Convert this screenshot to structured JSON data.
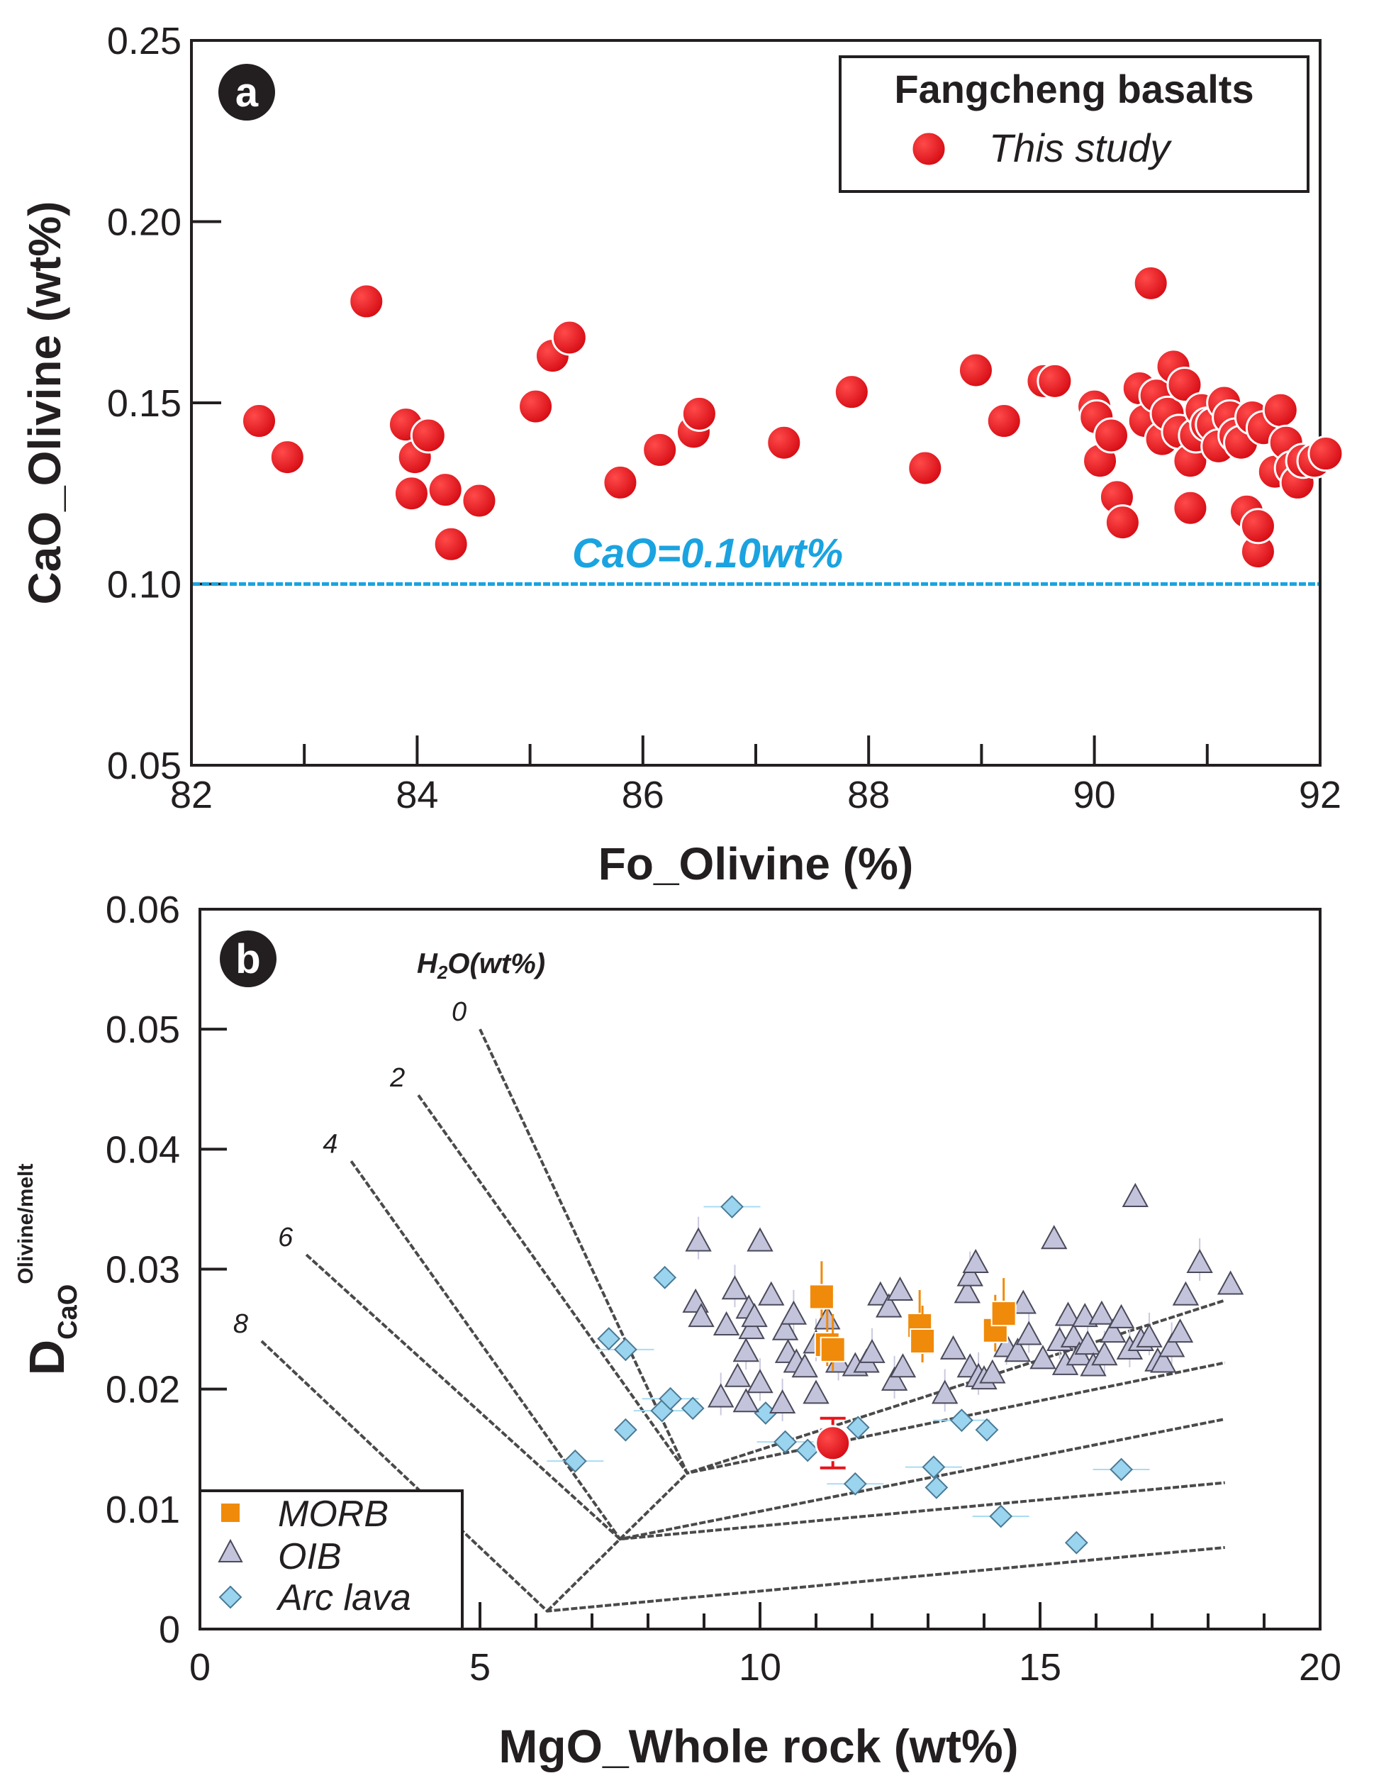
{
  "chart_data": [
    {
      "type": "scatter",
      "panel_label": "a",
      "xlabel": "Fo_Olivine (%)",
      "ylabel": "CaO_Olivine (wt%)",
      "xlim": [
        82,
        92
      ],
      "ylim": [
        0.05,
        0.25
      ],
      "x_ticks": [
        82,
        84,
        86,
        88,
        90,
        92
      ],
      "x_tick_labels": [
        "82",
        "84",
        "86",
        "88",
        "90",
        "92"
      ],
      "y_ticks": [
        0.05,
        0.1,
        0.15,
        0.2,
        0.25
      ],
      "y_tick_labels": [
        "0.05",
        "0.10",
        "0.15",
        "0.20",
        "0.25"
      ],
      "reference_line": {
        "y": 0.1,
        "label": "CaO=0.10wt%",
        "color": "#1aa3e0"
      },
      "legend": {
        "title": "Fangcheng basalts",
        "entries": [
          {
            "label": "This study",
            "color": "#e8141a"
          }
        ],
        "position": "top-right"
      },
      "series": [
        {
          "name": "This study",
          "color": "#e8141a",
          "points": [
            [
              82.6,
              0.145
            ],
            [
              82.85,
              0.135
            ],
            [
              83.55,
              0.178
            ],
            [
              83.9,
              0.144
            ],
            [
              83.95,
              0.125
            ],
            [
              83.98,
              0.135
            ],
            [
              84.1,
              0.141
            ],
            [
              84.25,
              0.126
            ],
            [
              84.3,
              0.111
            ],
            [
              84.55,
              0.123
            ],
            [
              85.05,
              0.149
            ],
            [
              85.2,
              0.163
            ],
            [
              85.35,
              0.168
            ],
            [
              85.8,
              0.128
            ],
            [
              86.15,
              0.137
            ],
            [
              86.45,
              0.142
            ],
            [
              86.5,
              0.147
            ],
            [
              87.25,
              0.139
            ],
            [
              87.85,
              0.153
            ],
            [
              88.5,
              0.132
            ],
            [
              88.95,
              0.159
            ],
            [
              89.2,
              0.145
            ],
            [
              89.55,
              0.156
            ],
            [
              89.65,
              0.156
            ],
            [
              90.0,
              0.149
            ],
            [
              90.02,
              0.146
            ],
            [
              90.05,
              0.134
            ],
            [
              90.15,
              0.141
            ],
            [
              90.2,
              0.124
            ],
            [
              90.25,
              0.117
            ],
            [
              90.4,
              0.154
            ],
            [
              90.45,
              0.145
            ],
            [
              90.5,
              0.183
            ],
            [
              90.55,
              0.152
            ],
            [
              90.6,
              0.14
            ],
            [
              90.65,
              0.147
            ],
            [
              90.7,
              0.16
            ],
            [
              90.75,
              0.142
            ],
            [
              90.8,
              0.155
            ],
            [
              90.85,
              0.121
            ],
            [
              90.85,
              0.134
            ],
            [
              90.9,
              0.141
            ],
            [
              90.95,
              0.148
            ],
            [
              91.0,
              0.144
            ],
            [
              91.05,
              0.144
            ],
            [
              91.1,
              0.138
            ],
            [
              91.15,
              0.15
            ],
            [
              91.2,
              0.146
            ],
            [
              91.25,
              0.141
            ],
            [
              91.3,
              0.139
            ],
            [
              91.35,
              0.12
            ],
            [
              91.4,
              0.146
            ],
            [
              91.45,
              0.109
            ],
            [
              91.45,
              0.116
            ],
            [
              91.5,
              0.143
            ],
            [
              91.6,
              0.131
            ],
            [
              91.65,
              0.148
            ],
            [
              91.7,
              0.139
            ],
            [
              91.75,
              0.132
            ],
            [
              91.8,
              0.128
            ],
            [
              91.85,
              0.134
            ],
            [
              91.95,
              0.134
            ],
            [
              92.05,
              0.136
            ]
          ]
        }
      ]
    },
    {
      "type": "scatter",
      "panel_label": "b",
      "xlabel": "MgO_Whole rock (wt%)",
      "ylabel_main": "D",
      "ylabel_sub": "CaO",
      "ylabel_sup": "Olivine/melt",
      "xlim": [
        0,
        20
      ],
      "ylim": [
        0,
        0.06
      ],
      "x_ticks": [
        0,
        5,
        10,
        15,
        20
      ],
      "x_tick_labels": [
        "0",
        "5",
        "10",
        "15",
        "20"
      ],
      "y_ticks": [
        0,
        0.01,
        0.02,
        0.03,
        0.04,
        0.05,
        0.06
      ],
      "y_tick_labels": [
        "0",
        "0.01",
        "0.02",
        "0.03",
        "0.04",
        "0.05",
        "0.06"
      ],
      "h2o_title_main": "H",
      "h2o_title_sub": "2",
      "h2o_title_rest": "O(wt%)",
      "h2o_model_lines": [
        {
          "label": "0",
          "vertex": [
            8.7,
            0.013
          ],
          "start": [
            5.0,
            0.05
          ],
          "end": [
            18.3,
            0.0274
          ]
        },
        {
          "label": "2",
          "vertex": [
            8.7,
            0.013
          ],
          "start": [
            3.9,
            0.0445
          ],
          "end": [
            18.3,
            0.0222
          ]
        },
        {
          "label": "4",
          "vertex": [
            7.5,
            0.0075
          ],
          "start": [
            2.7,
            0.039
          ],
          "end": [
            18.3,
            0.0175
          ]
        },
        {
          "label": "6",
          "vertex": [
            7.5,
            0.0075
          ],
          "start": [
            1.9,
            0.0312
          ],
          "end": [
            18.3,
            0.0122
          ]
        },
        {
          "label": "8",
          "vertex": [
            6.2,
            0.0015
          ],
          "start": [
            1.1,
            0.024
          ],
          "end": [
            18.3,
            0.0068
          ]
        }
      ],
      "mixing_line": [
        [
          6.2,
          0.0015
        ],
        [
          7.5,
          0.0075
        ],
        [
          8.7,
          0.013
        ]
      ],
      "legend": {
        "entries": [
          {
            "label": "MORB",
            "marker": "square",
            "color": "#f08a0a"
          },
          {
            "label": "OIB",
            "marker": "triangle",
            "color": "#c3c3dc"
          },
          {
            "label": "Arc lava",
            "marker": "diamond",
            "color": "#9ad4ee"
          }
        ],
        "position": "bottom-left"
      },
      "series": [
        {
          "name": "MORB",
          "color": "#f08a0a",
          "points": [
            [
              11.1,
              0.0277
            ],
            [
              11.2,
              0.0237
            ],
            [
              11.3,
              0.0233
            ],
            [
              12.85,
              0.0253
            ],
            [
              12.9,
              0.024
            ],
            [
              14.2,
              0.0249
            ],
            [
              14.35,
              0.0263
            ]
          ]
        },
        {
          "name": "OIB",
          "color": "#c3c3dc",
          "points": [
            [
              8.9,
              0.0323
            ],
            [
              8.85,
              0.0272
            ],
            [
              8.95,
              0.026
            ],
            [
              9.3,
              0.0193
            ],
            [
              9.4,
              0.0253
            ],
            [
              9.6,
              0.021
            ],
            [
              9.55,
              0.0283
            ],
            [
              9.75,
              0.0189
            ],
            [
              9.8,
              0.0267
            ],
            [
              9.75,
              0.0231
            ],
            [
              9.85,
              0.025
            ],
            [
              9.9,
              0.026
            ],
            [
              10.0,
              0.0205
            ],
            [
              10.0,
              0.0323
            ],
            [
              10.2,
              0.0278
            ],
            [
              10.4,
              0.0188
            ],
            [
              10.45,
              0.0249
            ],
            [
              10.5,
              0.023
            ],
            [
              10.6,
              0.0262
            ],
            [
              10.65,
              0.0222
            ],
            [
              10.8,
              0.0218
            ],
            [
              11.0,
              0.0238
            ],
            [
              11.0,
              0.0196
            ],
            [
              11.2,
              0.0258
            ],
            [
              11.4,
              0.0222
            ],
            [
              11.7,
              0.0219
            ],
            [
              11.9,
              0.0222
            ],
            [
              12.0,
              0.023
            ],
            [
              12.15,
              0.0278
            ],
            [
              12.3,
              0.0268
            ],
            [
              12.4,
              0.0207
            ],
            [
              12.55,
              0.0218
            ],
            [
              12.5,
              0.0282
            ],
            [
              13.3,
              0.0196
            ],
            [
              13.45,
              0.0233
            ],
            [
              13.7,
              0.028
            ],
            [
              13.75,
              0.0294
            ],
            [
              13.75,
              0.0218
            ],
            [
              13.85,
              0.0305
            ],
            [
              13.9,
              0.021
            ],
            [
              14.0,
              0.0208
            ],
            [
              14.15,
              0.0213
            ],
            [
              14.4,
              0.0235
            ],
            [
              14.6,
              0.0231
            ],
            [
              14.7,
              0.0271
            ],
            [
              14.8,
              0.0245
            ],
            [
              15.05,
              0.0225
            ],
            [
              15.25,
              0.0325
            ],
            [
              15.35,
              0.024
            ],
            [
              15.45,
              0.022
            ],
            [
              15.5,
              0.0261
            ],
            [
              15.6,
              0.0243
            ],
            [
              15.7,
              0.0228
            ],
            [
              15.8,
              0.026
            ],
            [
              15.85,
              0.0237
            ],
            [
              15.95,
              0.0219
            ],
            [
              16.1,
              0.0262
            ],
            [
              16.15,
              0.0228
            ],
            [
              16.3,
              0.0247
            ],
            [
              16.45,
              0.0259
            ],
            [
              16.6,
              0.0233
            ],
            [
              16.7,
              0.036
            ],
            [
              16.8,
              0.024
            ],
            [
              16.95,
              0.0243
            ],
            [
              17.1,
              0.0223
            ],
            [
              17.2,
              0.0222
            ],
            [
              17.35,
              0.0235
            ],
            [
              17.5,
              0.0247
            ],
            [
              17.6,
              0.0278
            ],
            [
              17.85,
              0.0305
            ],
            [
              18.4,
              0.0287
            ]
          ]
        },
        {
          "name": "Arc lava",
          "color": "#9ad4ee",
          "points": [
            [
              6.7,
              0.014
            ],
            [
              7.3,
              0.0242
            ],
            [
              7.6,
              0.0233
            ],
            [
              7.6,
              0.0166
            ],
            [
              8.25,
              0.0182
            ],
            [
              8.3,
              0.0293
            ],
            [
              8.4,
              0.0192
            ],
            [
              8.8,
              0.0184
            ],
            [
              9.5,
              0.0352
            ],
            [
              10.1,
              0.018
            ],
            [
              10.45,
              0.0156
            ],
            [
              10.85,
              0.0149
            ],
            [
              11.7,
              0.0121
            ],
            [
              11.75,
              0.0168
            ],
            [
              13.1,
              0.0135
            ],
            [
              13.15,
              0.0118
            ],
            [
              13.6,
              0.0174
            ],
            [
              14.05,
              0.0166
            ],
            [
              14.3,
              0.0094
            ],
            [
              15.65,
              0.0072
            ],
            [
              16.45,
              0.0133
            ]
          ]
        },
        {
          "name": "Fangcheng basalts",
          "color": "#e8141a",
          "points": [
            [
              11.3,
              0.0155
            ]
          ]
        }
      ]
    }
  ]
}
